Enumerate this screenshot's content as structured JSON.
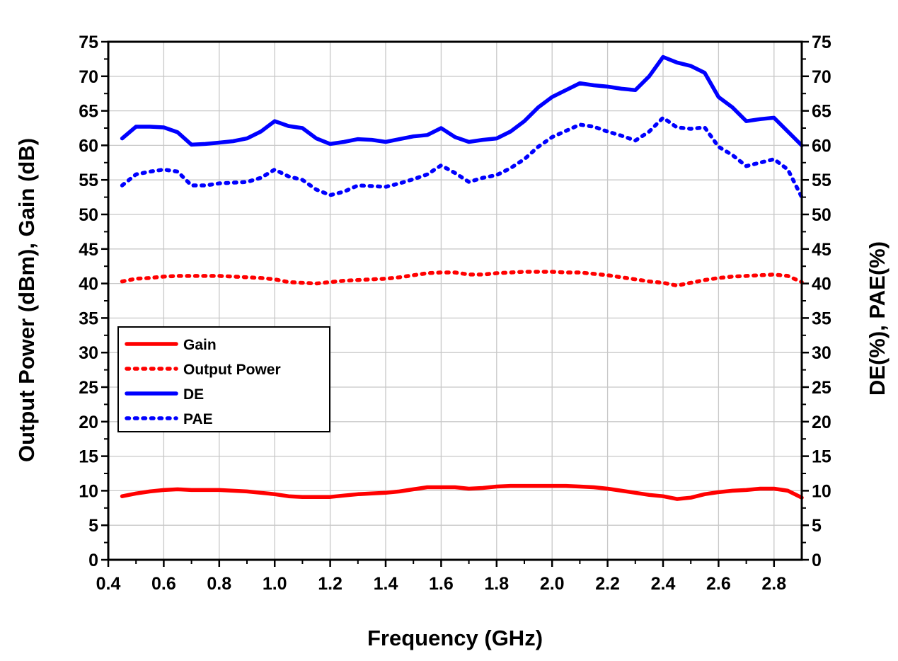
{
  "chart_data": {
    "type": "line",
    "xlabel": "Frequency (GHz)",
    "ylabel_left": "Output Power (dBm), Gain (dB)",
    "ylabel_right": "DE(%), PAE(%)",
    "xlim": [
      0.4,
      2.9
    ],
    "ylim": [
      0,
      75
    ],
    "x_ticks": [
      "0.4",
      "0.6",
      "0.8",
      "1.0",
      "1.2",
      "1.4",
      "1.6",
      "1.8",
      "2.0",
      "2.2",
      "2.4",
      "2.6",
      "2.8"
    ],
    "y_ticks": [
      "0",
      "5",
      "10",
      "15",
      "20",
      "25",
      "30",
      "35",
      "40",
      "45",
      "50",
      "55",
      "60",
      "65",
      "70",
      "75"
    ],
    "grid": true,
    "legend_position": "bottom-left",
    "x": [
      0.45,
      0.5,
      0.55,
      0.6,
      0.65,
      0.7,
      0.75,
      0.8,
      0.85,
      0.9,
      0.95,
      1.0,
      1.05,
      1.1,
      1.15,
      1.2,
      1.25,
      1.3,
      1.35,
      1.4,
      1.45,
      1.5,
      1.55,
      1.6,
      1.65,
      1.7,
      1.75,
      1.8,
      1.85,
      1.9,
      1.95,
      2.0,
      2.05,
      2.1,
      2.15,
      2.2,
      2.25,
      2.3,
      2.35,
      2.4,
      2.45,
      2.5,
      2.55,
      2.6,
      2.65,
      2.7,
      2.75,
      2.8,
      2.85,
      2.9
    ],
    "series": [
      {
        "name": "Gain",
        "color": "#ff0000",
        "style": "solid",
        "values": [
          9.2,
          9.6,
          9.9,
          10.1,
          10.2,
          10.1,
          10.1,
          10.1,
          10.0,
          9.9,
          9.7,
          9.5,
          9.2,
          9.1,
          9.1,
          9.1,
          9.3,
          9.5,
          9.6,
          9.7,
          9.9,
          10.2,
          10.5,
          10.5,
          10.5,
          10.3,
          10.4,
          10.6,
          10.7,
          10.7,
          10.7,
          10.7,
          10.7,
          10.6,
          10.5,
          10.3,
          10.0,
          9.7,
          9.4,
          9.2,
          8.8,
          9.0,
          9.5,
          9.8,
          10.0,
          10.1,
          10.3,
          10.3,
          10.0,
          9.0
        ]
      },
      {
        "name": "Output Power",
        "color": "#ff0000",
        "style": "dotted",
        "values": [
          40.3,
          40.7,
          40.8,
          41.0,
          41.1,
          41.1,
          41.1,
          41.1,
          41.0,
          40.9,
          40.8,
          40.6,
          40.2,
          40.1,
          40.0,
          40.2,
          40.4,
          40.5,
          40.6,
          40.7,
          40.9,
          41.2,
          41.5,
          41.6,
          41.6,
          41.3,
          41.3,
          41.5,
          41.6,
          41.7,
          41.7,
          41.7,
          41.6,
          41.6,
          41.4,
          41.2,
          40.9,
          40.6,
          40.3,
          40.1,
          39.7,
          40.1,
          40.5,
          40.8,
          41.0,
          41.1,
          41.2,
          41.3,
          41.1,
          40.2
        ]
      },
      {
        "name": "DE",
        "color": "#0000ff",
        "style": "solid",
        "values": [
          61.0,
          62.7,
          62.7,
          62.6,
          61.9,
          60.1,
          60.2,
          60.4,
          60.6,
          61.0,
          62.0,
          63.5,
          62.8,
          62.5,
          61.0,
          60.2,
          60.5,
          60.9,
          60.8,
          60.5,
          60.9,
          61.3,
          61.5,
          62.5,
          61.2,
          60.5,
          60.8,
          61.0,
          62.0,
          63.5,
          65.5,
          67.0,
          68.0,
          69.0,
          68.7,
          68.5,
          68.2,
          68.0,
          70.0,
          72.8,
          72.0,
          71.5,
          70.5,
          67.0,
          65.5,
          63.5,
          63.8,
          64.0,
          62.0,
          60.0
        ]
      },
      {
        "name": "PAE",
        "color": "#0000ff",
        "style": "dotted",
        "values": [
          54.2,
          55.8,
          56.2,
          56.5,
          56.2,
          54.2,
          54.2,
          54.5,
          54.6,
          54.7,
          55.3,
          56.5,
          55.5,
          55.0,
          53.6,
          52.8,
          53.3,
          54.2,
          54.1,
          54.0,
          54.5,
          55.1,
          55.8,
          57.1,
          56.0,
          54.7,
          55.3,
          55.7,
          56.7,
          58.0,
          59.8,
          61.2,
          62.1,
          63.0,
          62.7,
          62.0,
          61.4,
          60.7,
          62.0,
          64.0,
          62.6,
          62.4,
          62.6,
          59.8,
          58.6,
          57.0,
          57.5,
          58.0,
          56.5,
          52.5
        ]
      }
    ]
  }
}
